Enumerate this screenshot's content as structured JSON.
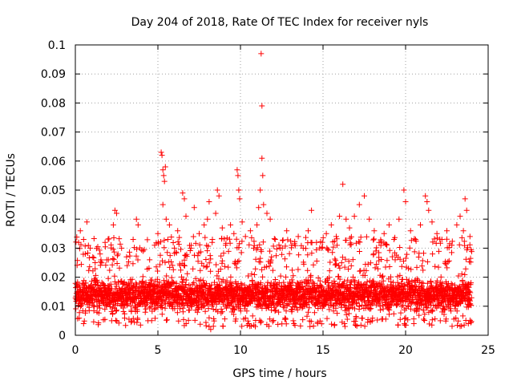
{
  "chart_data": {
    "type": "scatter",
    "title": "Day 204 of 2018, Rate Of TEC Index for receiver nyls",
    "xlabel": "GPS time / hours",
    "ylabel": "ROTI / TECUs",
    "xlim": [
      0,
      25
    ],
    "ylim": [
      0,
      0.1
    ],
    "xticks": [
      0,
      5,
      10,
      15,
      20,
      25
    ],
    "xtick_labels": [
      "0",
      "5",
      "10",
      "15",
      "20",
      "25"
    ],
    "yticks": [
      0,
      0.01,
      0.02,
      0.03,
      0.04,
      0.05,
      0.06,
      0.07,
      0.08,
      0.09,
      0.1
    ],
    "ytick_labels": [
      "0",
      "0.01",
      "0.02",
      "0.03",
      "0.04",
      "0.05",
      "0.06",
      "0.07",
      "0.08",
      "0.09",
      "0.1"
    ],
    "grid": true,
    "marker": "+",
    "color": "#ff0000",
    "series": [
      {
        "name": "ROTI",
        "band": {
          "x_range": [
            0,
            24
          ],
          "y_low": 0.006,
          "y_high": 0.022,
          "note": "dense continuous band of points from ~0.005 to ~0.025 TECU/s across the whole day"
        },
        "points": [
          [
            0.2,
            0.032
          ],
          [
            0.3,
            0.036
          ],
          [
            0.5,
            0.033
          ],
          [
            0.6,
            0.028
          ],
          [
            0.7,
            0.039
          ],
          [
            0.9,
            0.03
          ],
          [
            1.2,
            0.025
          ],
          [
            1.5,
            0.028
          ],
          [
            1.8,
            0.032
          ],
          [
            2.0,
            0.026
          ],
          [
            2.3,
            0.038
          ],
          [
            2.4,
            0.043
          ],
          [
            2.5,
            0.042
          ],
          [
            2.8,
            0.03
          ],
          [
            3.1,
            0.027
          ],
          [
            3.5,
            0.033
          ],
          [
            3.7,
            0.04
          ],
          [
            3.8,
            0.038
          ],
          [
            4.1,
            0.029
          ],
          [
            4.5,
            0.026
          ],
          [
            4.8,
            0.031
          ],
          [
            5.0,
            0.035
          ],
          [
            5.2,
            0.063
          ],
          [
            5.25,
            0.062
          ],
          [
            5.3,
            0.057
          ],
          [
            5.35,
            0.055
          ],
          [
            5.4,
            0.053
          ],
          [
            5.45,
            0.058
          ],
          [
            5.3,
            0.045
          ],
          [
            5.5,
            0.04
          ],
          [
            5.6,
            0.033
          ],
          [
            5.7,
            0.038
          ],
          [
            6.0,
            0.03
          ],
          [
            6.2,
            0.036
          ],
          [
            6.5,
            0.049
          ],
          [
            6.6,
            0.047
          ],
          [
            6.7,
            0.041
          ],
          [
            7.0,
            0.03
          ],
          [
            7.2,
            0.044
          ],
          [
            7.5,
            0.035
          ],
          [
            7.8,
            0.038
          ],
          [
            8.0,
            0.04
          ],
          [
            8.1,
            0.046
          ],
          [
            8.3,
            0.033
          ],
          [
            8.5,
            0.042
          ],
          [
            8.6,
            0.05
          ],
          [
            8.7,
            0.048
          ],
          [
            8.9,
            0.037
          ],
          [
            9.1,
            0.031
          ],
          [
            9.4,
            0.038
          ],
          [
            9.6,
            0.035
          ],
          [
            9.8,
            0.057
          ],
          [
            9.85,
            0.055
          ],
          [
            9.9,
            0.05
          ],
          [
            9.95,
            0.047
          ],
          [
            10.1,
            0.039
          ],
          [
            10.3,
            0.034
          ],
          [
            10.6,
            0.036
          ],
          [
            10.8,
            0.03
          ],
          [
            11.0,
            0.038
          ],
          [
            11.1,
            0.044
          ],
          [
            11.2,
            0.05
          ],
          [
            11.25,
            0.097
          ],
          [
            11.3,
            0.079
          ],
          [
            11.3,
            0.061
          ],
          [
            11.35,
            0.055
          ],
          [
            11.4,
            0.045
          ],
          [
            11.6,
            0.042
          ],
          [
            11.8,
            0.04
          ],
          [
            12.1,
            0.033
          ],
          [
            12.4,
            0.03
          ],
          [
            12.8,
            0.036
          ],
          [
            13.1,
            0.031
          ],
          [
            13.5,
            0.034
          ],
          [
            13.8,
            0.03
          ],
          [
            14.1,
            0.036
          ],
          [
            14.3,
            0.043
          ],
          [
            14.6,
            0.032
          ],
          [
            14.9,
            0.03
          ],
          [
            15.2,
            0.035
          ],
          [
            15.5,
            0.038
          ],
          [
            15.8,
            0.034
          ],
          [
            16.0,
            0.041
          ],
          [
            16.2,
            0.052
          ],
          [
            16.4,
            0.04
          ],
          [
            16.6,
            0.037
          ],
          [
            16.9,
            0.041
          ],
          [
            17.2,
            0.045
          ],
          [
            17.5,
            0.048
          ],
          [
            17.8,
            0.04
          ],
          [
            18.1,
            0.036
          ],
          [
            18.4,
            0.032
          ],
          [
            18.7,
            0.035
          ],
          [
            19.0,
            0.038
          ],
          [
            19.3,
            0.033
          ],
          [
            19.6,
            0.04
          ],
          [
            19.9,
            0.05
          ],
          [
            20.0,
            0.046
          ],
          [
            20.3,
            0.036
          ],
          [
            20.6,
            0.033
          ],
          [
            20.9,
            0.038
          ],
          [
            21.2,
            0.048
          ],
          [
            21.3,
            0.046
          ],
          [
            21.4,
            0.043
          ],
          [
            21.6,
            0.039
          ],
          [
            21.9,
            0.035
          ],
          [
            22.2,
            0.033
          ],
          [
            22.5,
            0.036
          ],
          [
            22.8,
            0.031
          ],
          [
            23.1,
            0.038
          ],
          [
            23.3,
            0.041
          ],
          [
            23.5,
            0.036
          ],
          [
            23.6,
            0.047
          ],
          [
            23.7,
            0.043
          ],
          [
            23.9,
            0.034
          ],
          [
            0.5,
            0.004
          ],
          [
            2.2,
            0.005
          ],
          [
            4.4,
            0.005
          ],
          [
            8.1,
            0.003
          ],
          [
            8.2,
            0.002
          ],
          [
            10.5,
            0.004
          ],
          [
            10.9,
            0.003
          ],
          [
            13.2,
            0.005
          ],
          [
            16.3,
            0.004
          ],
          [
            20.5,
            0.004
          ],
          [
            22.1,
            0.005
          ],
          [
            23.8,
            0.004
          ]
        ]
      }
    ]
  }
}
